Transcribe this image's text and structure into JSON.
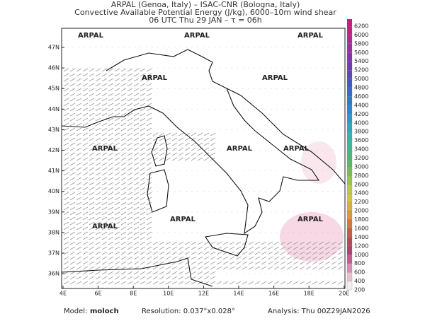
{
  "header": {
    "lines": [
      "ARPAL (Genoa, Italy)  –  ISAC-CNR (Bologna, Italy)",
      "Convective Available Potential Energy (J/kg), 6000–10m wind shear",
      "06 UTC Thu 29 JAN  –  τ = 06h"
    ]
  },
  "map": {
    "watermark": "ARPAL",
    "lon_labels": [
      "4E",
      "6E",
      "8E",
      "10E",
      "12E",
      "14E",
      "16E",
      "18E",
      "20E"
    ],
    "lat_labels": [
      "47N",
      "46N",
      "45N",
      "44N",
      "43N",
      "42N",
      "41N",
      "40N",
      "39N",
      "38N",
      "37N",
      "36N"
    ]
  },
  "colorbar": {
    "labels": [
      "6200",
      "6000",
      "5800",
      "5600",
      "5400",
      "5200",
      "5000",
      "4800",
      "4600",
      "4400",
      "4200",
      "4000",
      "3800",
      "3600",
      "3400",
      "3200",
      "3000",
      "2800",
      "2600",
      "2400",
      "2200",
      "2000",
      "1800",
      "1600",
      "1400",
      "1200",
      "1000",
      "800",
      "600",
      "400",
      "200"
    ],
    "colors": [
      "#c4217c",
      "#b02890",
      "#9a30a0",
      "#8434a8",
      "#6e3cb0",
      "#5848b8",
      "#4458c0",
      "#3868c8",
      "#3078c8",
      "#2c88c8",
      "#2c98c4",
      "#30a8bc",
      "#34b4ac",
      "#3cb898",
      "#48b880",
      "#5cb868",
      "#78bc58",
      "#98c450",
      "#b8cc48",
      "#d0c840",
      "#d8b040",
      "#d89840",
      "#d07a40",
      "#c45c48",
      "#b84858",
      "#b04070",
      "#c06090",
      "#d890b0",
      "#e8c0d0",
      "#f0f0f0"
    ]
  },
  "footer": {
    "model_label": "Model:",
    "model": "moloch",
    "resolution": "Resolution: 0.037°x0.028°",
    "analysis": "Analysis: Thu 00Z29JAN2026"
  }
}
